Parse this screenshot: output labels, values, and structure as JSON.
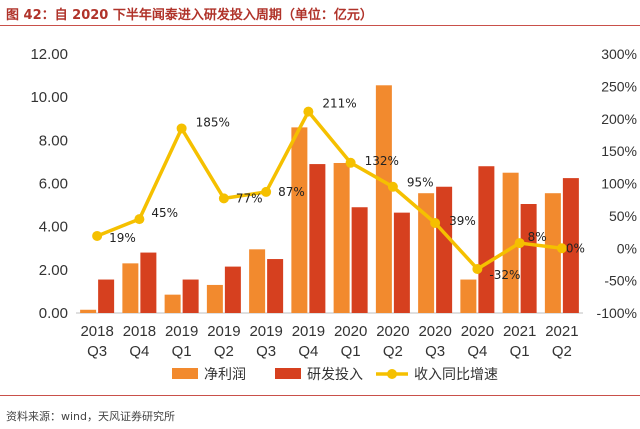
{
  "page": {
    "title": "图 42：自 2020 下半年闻泰进入研发投入周期（单位：亿元）",
    "source": "资料来源：wind，天风证券研究所"
  },
  "chart_data": {
    "type": "bar",
    "categories": [
      "2018 Q3",
      "2018 Q4",
      "2019 Q1",
      "2019 Q2",
      "2019 Q3",
      "2019 Q4",
      "2020 Q1",
      "2020 Q2",
      "2020 Q3",
      "2020 Q4",
      "2021 Q1",
      "2021 Q2"
    ],
    "category_lines": [
      [
        "2018",
        "Q3"
      ],
      [
        "2018",
        "Q4"
      ],
      [
        "2019",
        "Q1"
      ],
      [
        "2019",
        "Q2"
      ],
      [
        "2019",
        "Q3"
      ],
      [
        "2019",
        "Q4"
      ],
      [
        "2020",
        "Q1"
      ],
      [
        "2020",
        "Q2"
      ],
      [
        "2020",
        "Q3"
      ],
      [
        "2020",
        "Q4"
      ],
      [
        "2021",
        "Q1"
      ],
      [
        "2021",
        "Q2"
      ]
    ],
    "series": [
      {
        "name": "净利润",
        "type": "bar",
        "axis": "left",
        "color": "#f28a2e",
        "values": [
          0.15,
          2.3,
          0.85,
          1.3,
          2.95,
          8.6,
          6.95,
          10.55,
          5.55,
          1.55,
          6.5,
          5.55
        ]
      },
      {
        "name": "研发投入",
        "type": "bar",
        "axis": "left",
        "color": "#d6401f",
        "values": [
          1.55,
          2.8,
          1.55,
          2.15,
          2.5,
          6.9,
          4.9,
          4.65,
          5.85,
          6.8,
          5.05,
          6.25
        ]
      },
      {
        "name": "收入同比增速",
        "type": "line",
        "axis": "right",
        "color": "#f5c000",
        "values": [
          19,
          45,
          185,
          77,
          87,
          211,
          132,
          95,
          39,
          -32,
          8,
          0
        ],
        "labels": [
          "19%",
          "45%",
          "185%",
          "77%",
          "87%",
          "211%",
          "132%",
          "95%",
          "39%",
          "-32%",
          "8%",
          "0%"
        ]
      }
    ],
    "left_axis": {
      "ylim": [
        0,
        12
      ],
      "ticks": [
        "0.00",
        "2.00",
        "4.00",
        "6.00",
        "8.00",
        "10.00",
        "12.00"
      ]
    },
    "right_axis": {
      "ylim": [
        -100,
        300
      ],
      "ticks": [
        "-100%",
        "-50%",
        "0%",
        "50%",
        "100%",
        "150%",
        "200%",
        "250%",
        "300%"
      ]
    },
    "legend": {
      "position": "bottom",
      "items": [
        "净利润",
        "研发投入",
        "收入同比增速"
      ]
    },
    "grid": false
  }
}
